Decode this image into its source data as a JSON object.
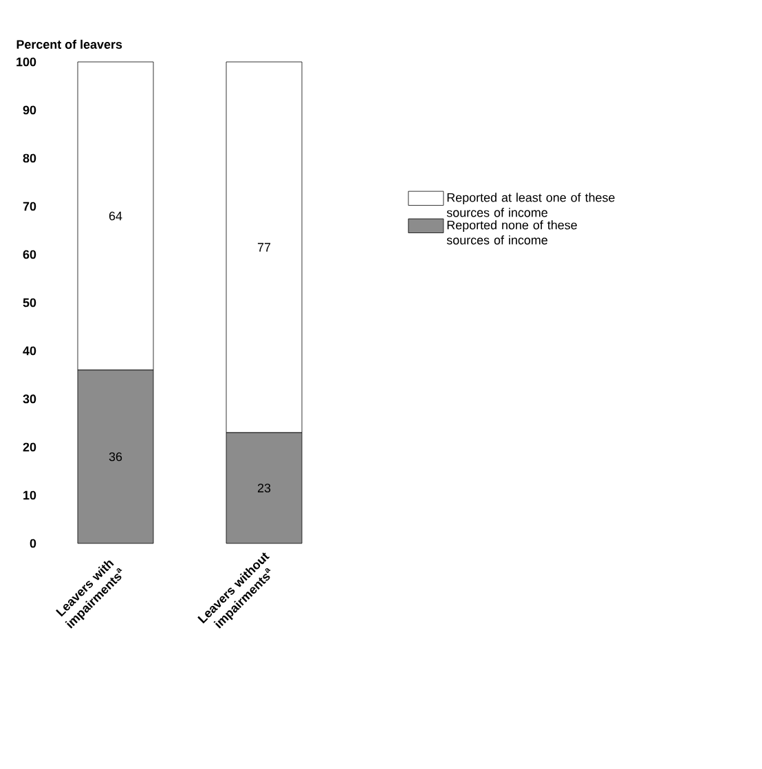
{
  "chart_data": {
    "type": "bar",
    "stacked": true,
    "ylabel": "Percent of leavers",
    "categories": [
      "Leavers with impairments$^{a}$",
      "Leavers without impairments$^{a}$"
    ],
    "series": [
      {
        "name": "Reported none of these sources of income",
        "color": "#8c8c8c",
        "values": [
          36,
          23
        ]
      },
      {
        "name": "Reported at least one of these sources of income",
        "color": "#ffffff",
        "values": [
          64,
          77
        ]
      }
    ],
    "ylim": [
      0,
      100
    ],
    "yticks": [
      0,
      10,
      20,
      30,
      40,
      50,
      60,
      70,
      80,
      90,
      100
    ],
    "data_labels": true,
    "legend": "right",
    "grid": false
  }
}
